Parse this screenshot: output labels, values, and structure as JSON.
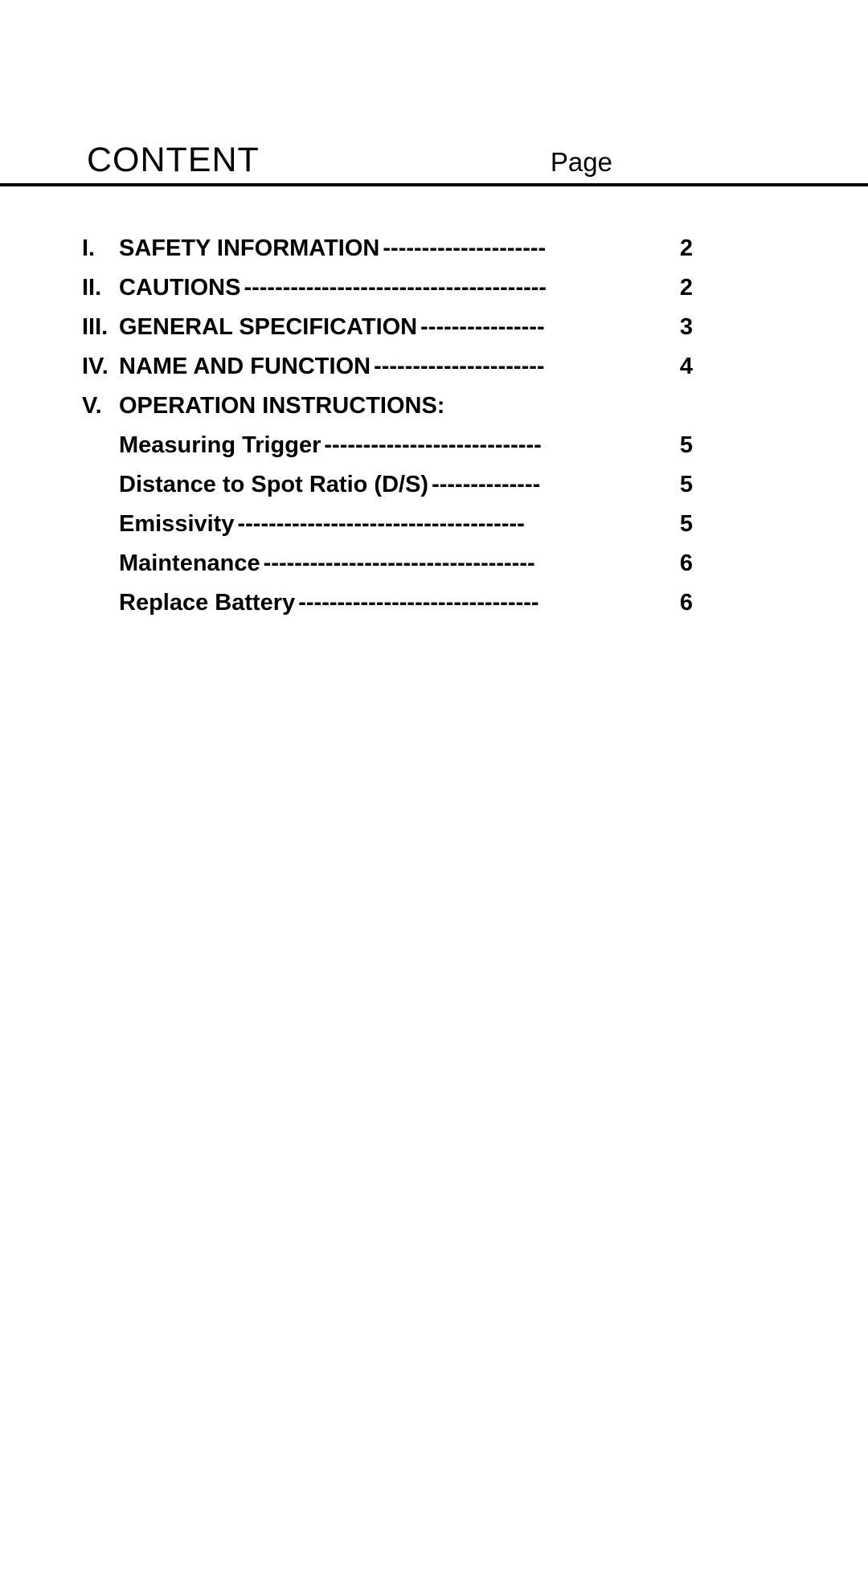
{
  "header": {
    "title": "CONTENT",
    "page_label": "Page"
  },
  "toc": {
    "items": [
      {
        "num": "I.",
        "title": "SAFETY INFORMATION",
        "dashes": "---------------------",
        "page": "2"
      },
      {
        "num": "II.",
        "title": "CAUTIONS",
        "dashes": "---------------------------------------",
        "page": "2"
      },
      {
        "num": "III.",
        "title": "GENERAL SPECIFICATION",
        "dashes": "----------------",
        "page": "3"
      },
      {
        "num": "IV.",
        "title": "NAME AND FUNCTION",
        "dashes": "----------------------",
        "page": "4"
      },
      {
        "num": "V.",
        "title": "OPERATION INSTRUCTIONS:",
        "dashes": "",
        "page": ""
      }
    ],
    "subitems": [
      {
        "title": "Measuring Trigger",
        "dashes": "----------------------------",
        "page": "5"
      },
      {
        "title": "Distance to Spot Ratio (D/S)",
        "dashes": "--------------",
        "page": "5"
      },
      {
        "title": "Emissivity  ",
        "dashes": "-------------------------------------",
        "page": "5"
      },
      {
        "title": "Maintenance",
        "dashes": "-----------------------------------",
        "page": "6"
      },
      {
        "title": "Replace Battery",
        "dashes": "-------------------------------",
        "page": "6"
      }
    ]
  },
  "style": {
    "background_color": "#ffffff",
    "text_color": "#000000",
    "divider_color": "#000000",
    "title_fontsize": 43,
    "page_label_fontsize": 33,
    "toc_fontsize": 29,
    "toc_line_height": 49,
    "toc_font_weight": "bold",
    "divider_height": 4
  }
}
